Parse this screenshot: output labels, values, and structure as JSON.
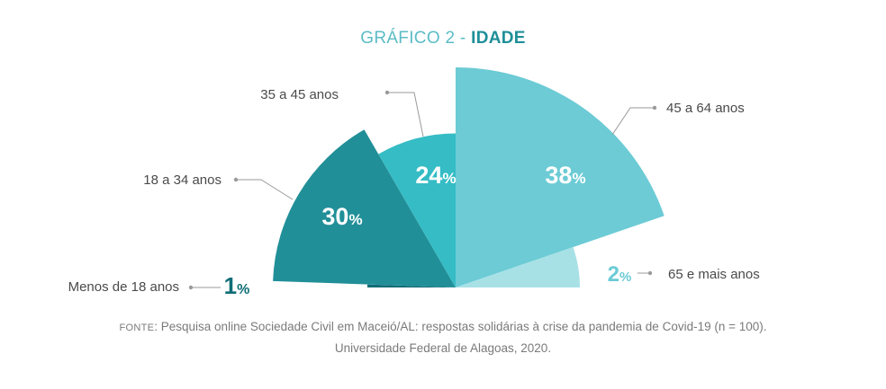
{
  "chart_title": {
    "prefix": "GRÁFICO 2 - ",
    "bold": "IDADE"
  },
  "chart_data": {
    "type": "pie",
    "variant": "half-pie with radial bars (polar area)",
    "title": "GRÁFICO 2 - IDADE",
    "categories": [
      "Menos de 18 anos",
      "18 a 34 anos",
      "35 a 45 anos",
      "45 a 64 anos",
      "65 e mais anos"
    ],
    "values": [
      1,
      30,
      24,
      38,
      2
    ],
    "value_labels": [
      "1",
      "30",
      "24",
      "38",
      "2"
    ],
    "unit": "%",
    "colors": [
      "#0f6d76",
      "#218f98",
      "#35bcc5",
      "#6ccbd5",
      "#a7e1e6"
    ],
    "label_colors": [
      "#0f6d76",
      "#ffffff",
      "#ffffff",
      "#ffffff",
      "#6ccbd5"
    ]
  },
  "source": {
    "prefix_smallcaps": "Fonte",
    "line1_rest": ": Pesquisa online Sociedade Civil em Maceió/AL: respostas solidárias à crise da pandemia de Covid-19 (n = 100).",
    "line2": "Universidade Federal de Alagoas, 2020."
  }
}
